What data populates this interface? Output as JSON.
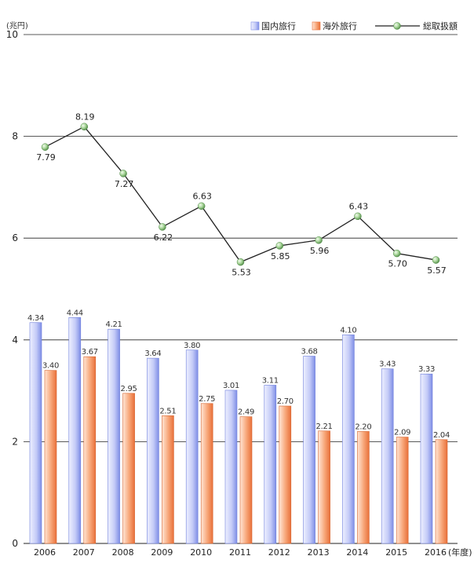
{
  "chart_data": {
    "type": "bar",
    "unit_label": "(兆円)",
    "x_unit_label": "(年度)",
    "categories": [
      "2006",
      "2007",
      "2008",
      "2009",
      "2010",
      "2011",
      "2012",
      "2013",
      "2014",
      "2015",
      "2016"
    ],
    "ylim": [
      0,
      10
    ],
    "yticks": [
      "0",
      "2",
      "4",
      "6",
      "8",
      "10"
    ],
    "gridlines_at": [
      2,
      4,
      6,
      8,
      10
    ],
    "legend_position": "top-right",
    "series": [
      {
        "name": "国内旅行",
        "type": "bar",
        "color": "#9aa6ee",
        "values": [
          4.34,
          4.44,
          4.21,
          3.64,
          3.8,
          3.01,
          3.11,
          3.68,
          4.1,
          3.43,
          3.33
        ],
        "labels": [
          "4.34",
          "4.44",
          "4.21",
          "3.64",
          "3.80",
          "3.01",
          "3.11",
          "3.68",
          "4.10",
          "3.43",
          "3.33"
        ]
      },
      {
        "name": "海外旅行",
        "type": "bar",
        "color": "#f08a55",
        "values": [
          3.4,
          3.67,
          2.95,
          2.51,
          2.75,
          2.49,
          2.7,
          2.21,
          2.2,
          2.09,
          2.04
        ],
        "labels": [
          "3.40",
          "3.67",
          "2.95",
          "2.51",
          "2.75",
          "2.49",
          "2.70",
          "2.21",
          "2.20",
          "2.09",
          "2.04"
        ]
      },
      {
        "name": "総取扱額",
        "type": "line",
        "color": "#222222",
        "marker_color": "#8fbf7a",
        "values": [
          7.79,
          8.19,
          7.27,
          6.22,
          6.63,
          5.53,
          5.85,
          5.96,
          6.43,
          5.7,
          5.57
        ],
        "labels": [
          "7.79",
          "8.19",
          "7.27",
          "6.22",
          "6.63",
          "5.53",
          "5.85",
          "5.96",
          "6.43",
          "5.70",
          "5.57"
        ]
      }
    ]
  }
}
